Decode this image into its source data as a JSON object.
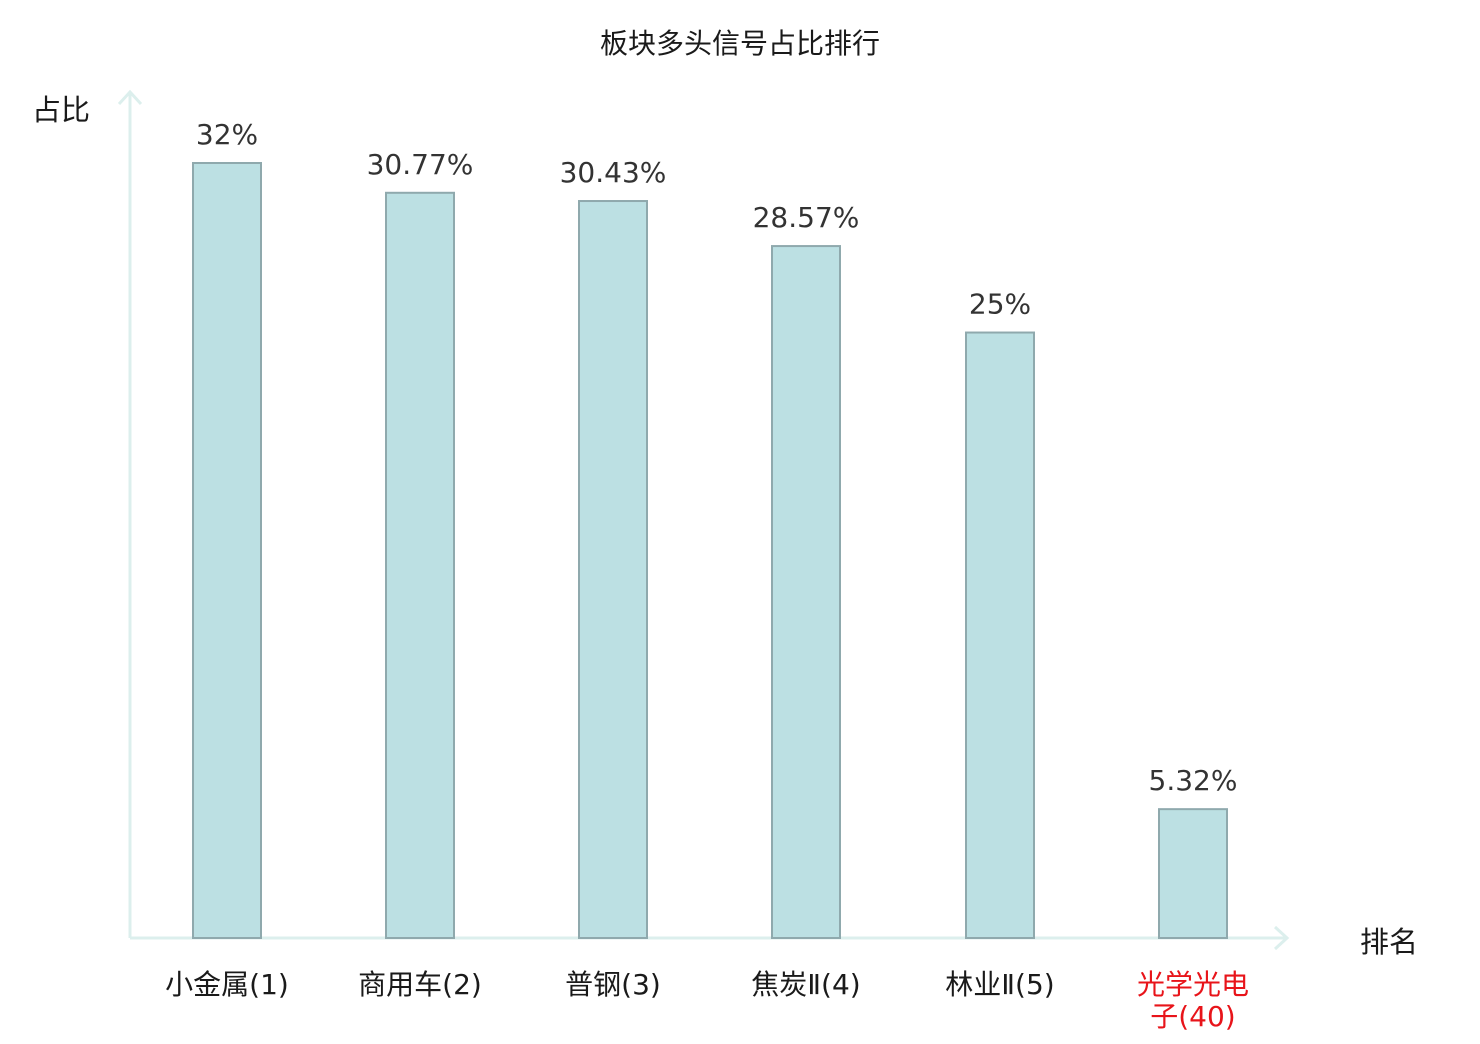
{
  "chart_data": {
    "type": "bar",
    "title": "板块多头信号占比排行",
    "xlabel": "排名",
    "ylabel": "占比",
    "categories": [
      [
        "小金属(1)"
      ],
      [
        "商用车(2)"
      ],
      [
        "普钢(3)"
      ],
      [
        "焦炭Ⅱ(4)"
      ],
      [
        "林业Ⅱ(5)"
      ],
      [
        "光学光电",
        "子(40)"
      ]
    ],
    "values": [
      32,
      30.77,
      30.43,
      28.57,
      25,
      5.32
    ],
    "value_labels": [
      "32%",
      "30.77%",
      "30.43%",
      "28.57%",
      "25%",
      "5.32%"
    ],
    "ylim": [
      0,
      35
    ],
    "grid": false,
    "legend": "none",
    "highlight_index": 5,
    "colors": {
      "bar_fill": "#bce0e3",
      "bar_stroke": "#8fa9ad",
      "axis": "#dcefed",
      "text": "#1a1a1a",
      "value_text": "#333333",
      "highlight_text": "#e8141a"
    }
  }
}
